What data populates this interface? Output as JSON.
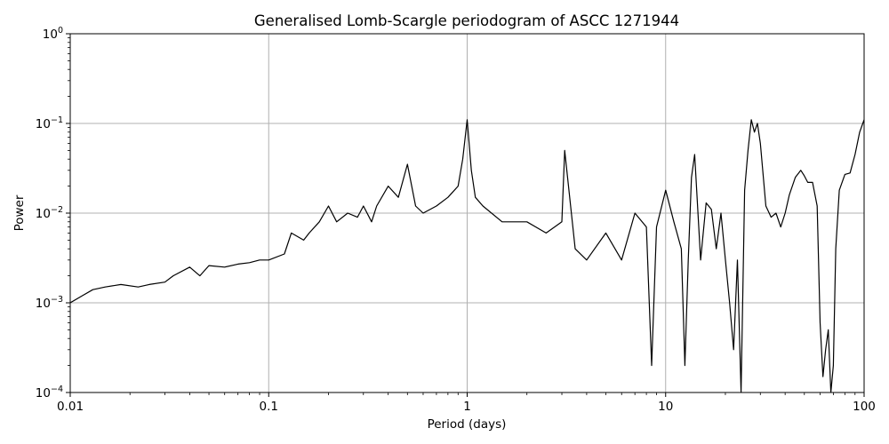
{
  "chart_data": {
    "type": "line",
    "title": "Generalised Lomb-Scargle periodogram of ASCC 1271944",
    "xlabel": "Period (days)",
    "ylabel": "Power",
    "xscale": "log",
    "yscale": "log",
    "xlim": [
      0.01,
      100
    ],
    "ylim": [
      0.0001,
      1
    ],
    "grid": true,
    "line_color": "#000000",
    "grid_color": "#b0b0b0",
    "x_ticks": [
      {
        "value": 0.01,
        "label": "0.01"
      },
      {
        "value": 0.1,
        "label": "0.1"
      },
      {
        "value": 1,
        "label": "1"
      },
      {
        "value": 10,
        "label": "10"
      },
      {
        "value": 100,
        "label": "100"
      }
    ],
    "y_ticks": [
      {
        "value": 0.0001,
        "base": "10",
        "exp": "−4"
      },
      {
        "value": 0.001,
        "base": "10",
        "exp": "−3"
      },
      {
        "value": 0.01,
        "base": "10",
        "exp": "−2"
      },
      {
        "value": 0.1,
        "base": "10",
        "exp": "−1"
      },
      {
        "value": 1,
        "base": "10",
        "exp": "0"
      }
    ],
    "series": [
      {
        "x": [
          0.01,
          0.0115,
          0.013,
          0.015,
          0.018,
          0.022,
          0.025,
          0.03,
          0.033,
          0.04,
          0.045,
          0.05,
          0.06,
          0.07,
          0.08,
          0.09,
          0.1,
          0.12,
          0.13,
          0.15,
          0.16,
          0.18,
          0.2,
          0.22,
          0.25,
          0.28,
          0.3,
          0.33,
          0.35,
          0.4,
          0.45,
          0.5,
          0.55,
          0.6,
          0.7,
          0.8,
          0.9,
          0.95,
          1.0,
          1.05,
          1.1,
          1.2,
          1.5,
          2.0,
          2.5,
          3.0,
          3.1,
          3.5,
          4.0,
          5.0,
          6.0,
          7.0,
          8.0,
          8.5,
          9.0,
          10.0,
          11.0,
          12.0,
          12.5,
          13.0,
          13.5,
          14.0,
          15.0,
          16.0,
          17.0,
          18.0,
          19.0,
          20.0,
          21.0,
          22.0,
          23.0,
          24.0,
          25.0,
          26.0,
          27.0,
          28.0,
          29.0,
          30.0,
          32.0,
          34.0,
          36.0,
          38.0,
          40.0,
          42.0,
          45.0,
          48.0,
          50.0,
          52.0,
          55.0,
          58.0,
          60.0,
          62.0,
          64.0,
          66.0,
          68.0,
          70.0,
          72.0,
          75.0,
          80.0,
          85.0,
          90.0,
          95.0,
          100.0
        ],
        "y": [
          0.001,
          0.0012,
          0.0014,
          0.0015,
          0.0016,
          0.0015,
          0.0016,
          0.0017,
          0.002,
          0.0025,
          0.002,
          0.0026,
          0.0025,
          0.0027,
          0.0028,
          0.003,
          0.003,
          0.0035,
          0.006,
          0.005,
          0.006,
          0.008,
          0.012,
          0.008,
          0.01,
          0.009,
          0.012,
          0.008,
          0.012,
          0.02,
          0.015,
          0.035,
          0.012,
          0.01,
          0.012,
          0.015,
          0.02,
          0.04,
          0.11,
          0.03,
          0.015,
          0.012,
          0.008,
          0.008,
          0.006,
          0.008,
          0.05,
          0.004,
          0.003,
          0.006,
          0.003,
          0.01,
          0.007,
          0.0002,
          0.007,
          0.018,
          0.008,
          0.004,
          0.0002,
          0.003,
          0.025,
          0.045,
          0.003,
          0.013,
          0.011,
          0.004,
          0.01,
          0.003,
          0.001,
          0.0003,
          0.003,
          0.0001,
          0.018,
          0.05,
          0.11,
          0.08,
          0.1,
          0.06,
          0.012,
          0.009,
          0.01,
          0.007,
          0.01,
          0.016,
          0.025,
          0.03,
          0.026,
          0.022,
          0.022,
          0.012,
          0.0006,
          0.00015,
          0.0003,
          0.0005,
          0.0001,
          0.0002,
          0.004,
          0.018,
          0.027,
          0.028,
          0.045,
          0.08,
          0.11
        ]
      }
    ]
  }
}
